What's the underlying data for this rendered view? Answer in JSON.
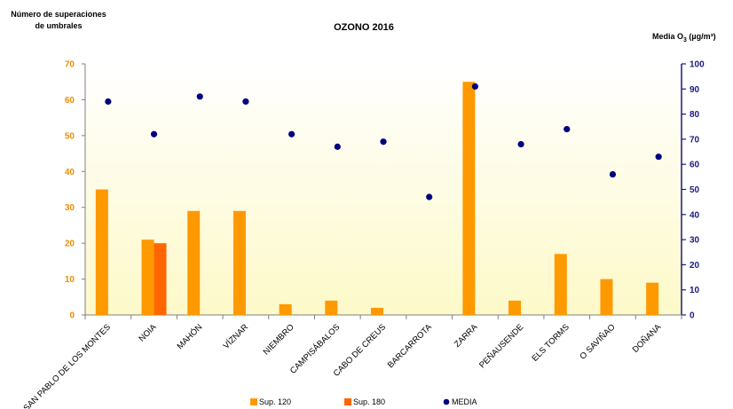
{
  "chart_data": {
    "type": "bar",
    "title": "OZONO 2016",
    "ylabel_left": [
      "Número de superaciones",
      "de umbrales"
    ],
    "ylabel_right": "Media O",
    "ylabel_right_sub": "3",
    "ylabel_right_unit": " (µg/m³)",
    "ylim_left": [
      0,
      70
    ],
    "ylim_right": [
      0,
      100
    ],
    "yticks_left": [
      "0",
      "10",
      "20",
      "30",
      "40",
      "50",
      "60",
      "70"
    ],
    "yticks_right": [
      "0",
      "10",
      "20",
      "30",
      "40",
      "50",
      "60",
      "70",
      "80",
      "90",
      "100"
    ],
    "categories": [
      "SAN PABLO DE LOS MONTES",
      "NOIA",
      "MAHÓN",
      "VÍZNAR",
      "NIEMBRO",
      "CAMPISÁBALOS",
      "CABO DE CREUS",
      "BARCARROTA",
      "ZARRA",
      "PEÑAUSENDE",
      "ELS TORMS",
      "O SAVIÑAO",
      "DOÑANA"
    ],
    "series": [
      {
        "name": "Sup. 120",
        "type": "bar",
        "axis": "left",
        "color": "#ff9900",
        "values": [
          35,
          21,
          29,
          29,
          3,
          4,
          2,
          0,
          65,
          4,
          17,
          10,
          9
        ]
      },
      {
        "name": "Sup. 180",
        "type": "bar",
        "axis": "left",
        "color": "#ff6600",
        "values": [
          0,
          20,
          0,
          0,
          0,
          0,
          0,
          0,
          0,
          0,
          0,
          0,
          0
        ]
      },
      {
        "name": "MEDIA",
        "type": "scatter",
        "axis": "right",
        "color": "#000080",
        "values": [
          85,
          72,
          87,
          85,
          72,
          67,
          69,
          47,
          91,
          68,
          74,
          56,
          63
        ]
      }
    ],
    "legend_position": "bottom",
    "grid": false
  }
}
